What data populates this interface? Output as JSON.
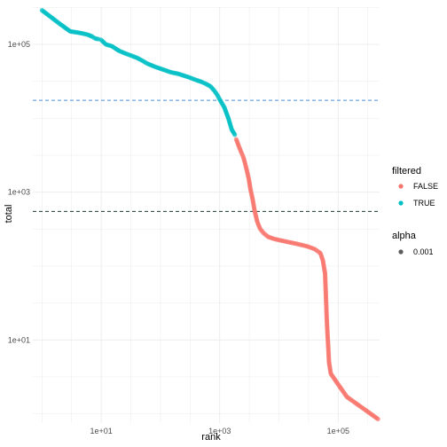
{
  "chart_data": {
    "type": "scatter",
    "x_scale": "log10",
    "y_scale": "log10",
    "xlabel": "rank",
    "ylabel": "total",
    "xlim": [
      0.7,
      500000
    ],
    "ylim": [
      0.75,
      320000
    ],
    "x_ticks": [
      {
        "value": 10,
        "label": "1e+01"
      },
      {
        "value": 1000,
        "label": "1e+03"
      },
      {
        "value": 100000,
        "label": "1e+05"
      }
    ],
    "y_ticks": [
      {
        "value": 10,
        "label": "1e+01"
      },
      {
        "value": 1000,
        "label": "1e+03"
      },
      {
        "value": 100000,
        "label": "1e+05"
      }
    ],
    "grid": true,
    "legend_position": "right",
    "color_legend": {
      "title": "filtered",
      "entries": [
        {
          "label": "FALSE",
          "color": "#F8766D"
        },
        {
          "label": "TRUE",
          "color": "#00BFC4"
        }
      ]
    },
    "alpha_legend": {
      "title": "alpha",
      "entries": [
        {
          "label": "0.001",
          "color": "#333333"
        }
      ]
    },
    "reference_lines": [
      {
        "axis": "y",
        "value": 17500,
        "color": "#4A90D9",
        "style": "dashed"
      },
      {
        "axis": "y",
        "value": 550,
        "color": "#1a3a2a",
        "style": "dashed"
      }
    ],
    "series": [
      {
        "filtered": "TRUE",
        "color": "#00BFC4",
        "points": [
          [
            1,
            290000
          ],
          [
            2,
            190000
          ],
          [
            3,
            150000
          ],
          [
            4,
            145000
          ],
          [
            5,
            140000
          ],
          [
            6,
            135000
          ],
          [
            7,
            128000
          ],
          [
            8,
            120000
          ],
          [
            9,
            118000
          ],
          [
            10,
            115000
          ],
          [
            12,
            100000
          ],
          [
            15,
            95000
          ],
          [
            20,
            82000
          ],
          [
            25,
            76000
          ],
          [
            30,
            72000
          ],
          [
            40,
            66000
          ],
          [
            50,
            60000
          ],
          [
            60,
            55000
          ],
          [
            80,
            50000
          ],
          [
            100,
            47000
          ],
          [
            150,
            42000
          ],
          [
            200,
            40000
          ],
          [
            300,
            36000
          ],
          [
            400,
            33000
          ],
          [
            500,
            31000
          ],
          [
            600,
            29000
          ],
          [
            700,
            27000
          ],
          [
            800,
            24000
          ],
          [
            900,
            21000
          ],
          [
            1000,
            18000
          ],
          [
            1200,
            14000
          ],
          [
            1400,
            10000
          ],
          [
            1600,
            7000
          ],
          [
            1800,
            6000
          ]
        ]
      },
      {
        "filtered": "FALSE",
        "color": "#F8766D",
        "points": [
          [
            1900,
            5200
          ],
          [
            2100,
            4200
          ],
          [
            2300,
            3500
          ],
          [
            2500,
            3000
          ],
          [
            2700,
            2400
          ],
          [
            2900,
            1900
          ],
          [
            3100,
            1500
          ],
          [
            3300,
            1100
          ],
          [
            3600,
            800
          ],
          [
            3900,
            550
          ],
          [
            4300,
            400
          ],
          [
            4800,
            320
          ],
          [
            5500,
            280
          ],
          [
            6500,
            250
          ],
          [
            8000,
            235
          ],
          [
            10000,
            225
          ],
          [
            15000,
            210
          ],
          [
            20000,
            200
          ],
          [
            30000,
            185
          ],
          [
            40000,
            170
          ],
          [
            50000,
            150
          ],
          [
            55000,
            120
          ],
          [
            60000,
            80
          ],
          [
            62000,
            40
          ],
          [
            64000,
            20
          ],
          [
            66000,
            12
          ],
          [
            68000,
            8
          ],
          [
            70000,
            5
          ],
          [
            75000,
            3.5
          ],
          [
            100000,
            2.5
          ],
          [
            140000,
            1.7
          ],
          [
            300000,
            1.1
          ],
          [
            470000,
            0.85
          ]
        ]
      }
    ]
  }
}
